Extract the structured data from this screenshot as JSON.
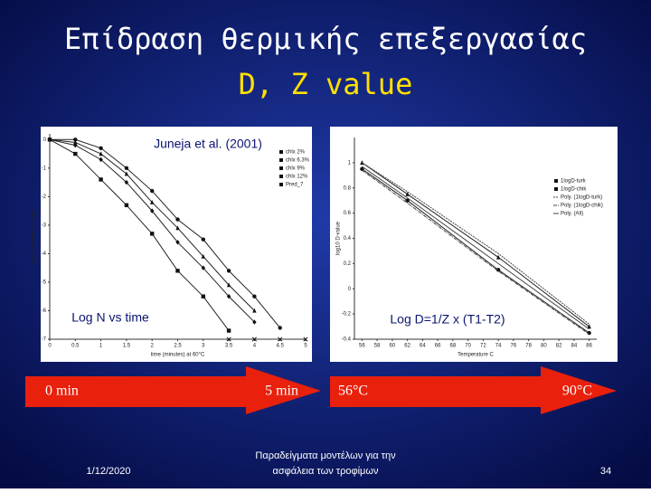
{
  "title": "Επίδραση θερμικής επεξεργασίας",
  "subtitle": "D, Z value",
  "charts": [
    {
      "xlabel": "time (minutes) at 60°C",
      "ylabel": "log10 fraction CFU/gm",
      "xlim": [
        0,
        5
      ],
      "ylim": [
        -7,
        0.2
      ],
      "xticks": [
        0,
        0.5,
        1,
        1.5,
        2,
        2.5,
        3,
        3.5,
        4,
        4.5,
        5
      ],
      "yticks": [
        0,
        -1,
        -2,
        -3,
        -4,
        -5,
        -6,
        -7
      ],
      "annotation_top": "Juneja et al. (2001)",
      "annotation_bottom": "Log N vs time",
      "series": [
        {
          "name": "chlx 2%",
          "marker": "square",
          "x": [
            0,
            0.5,
            1,
            1.5,
            2,
            2.5,
            3,
            3.5
          ],
          "values": [
            0,
            -0.5,
            -1.4,
            -2.3,
            -3.3,
            -4.6,
            -5.5,
            -6.7
          ]
        },
        {
          "name": "chlx 6.3%",
          "marker": "diamond",
          "x": [
            0,
            0.5,
            1,
            1.5,
            2,
            2.5,
            3,
            3.5,
            4
          ],
          "values": [
            0,
            -0.2,
            -0.7,
            -1.5,
            -2.5,
            -3.6,
            -4.5,
            -5.5,
            -6.4
          ]
        },
        {
          "name": "chlx 9%",
          "marker": "triangle",
          "x": [
            0,
            0.5,
            1,
            1.5,
            2,
            2.5,
            3,
            3.5,
            4
          ],
          "values": [
            0,
            -0.1,
            -0.5,
            -1.2,
            -2.2,
            -3.1,
            -4.1,
            -5.1,
            -6.0
          ]
        },
        {
          "name": "chlx 12%",
          "marker": "circle",
          "x": [
            0,
            0.5,
            1,
            1.5,
            2,
            2.5,
            3,
            3.5,
            4,
            4.5
          ],
          "values": [
            0,
            0,
            -0.3,
            -1.0,
            -1.8,
            -2.8,
            -3.5,
            -4.6,
            -5.5,
            -6.6
          ]
        },
        {
          "name": "Pred_7",
          "marker": "x",
          "x": [
            3.5,
            4,
            4.5,
            5
          ],
          "values": [
            -7,
            -7,
            -7,
            -7
          ]
        }
      ]
    },
    {
      "xlabel": "Temperature C",
      "ylabel": "log10 D-value",
      "xlim": [
        55,
        87
      ],
      "ylim": [
        -0.4,
        1.2
      ],
      "xticks": [
        56,
        58,
        60,
        62,
        64,
        66,
        68,
        70,
        72,
        74,
        76,
        78,
        80,
        82,
        84,
        86
      ],
      "yticks": [
        1,
        0.8,
        0.6,
        0.4,
        0.2,
        0,
        -0.2,
        -0.4
      ],
      "annotation_bottom": "Log D=1/Z x (T1-T2)",
      "series": [
        {
          "name": "1logD-turk",
          "marker": "triangle",
          "x": [
            56,
            62,
            74,
            86
          ],
          "values": [
            1.0,
            0.75,
            0.25,
            -0.3
          ]
        },
        {
          "name": "1logD-chik",
          "marker": "circle",
          "x": [
            56,
            62,
            74,
            86
          ],
          "values": [
            0.95,
            0.7,
            0.15,
            -0.35
          ]
        },
        {
          "name": "Poly. (1logD-turk)",
          "marker": "none",
          "x": [
            56,
            62,
            74,
            86
          ],
          "values": [
            1.0,
            0.77,
            0.28,
            -0.28
          ]
        },
        {
          "name": "Poly. (1logD-chik)",
          "marker": "none",
          "x": [
            56,
            62,
            74,
            86
          ],
          "values": [
            0.94,
            0.68,
            0.14,
            -0.36
          ]
        },
        {
          "name": "Poly. (All)",
          "marker": "none",
          "x": [
            56,
            62,
            74,
            86
          ],
          "values": [
            0.97,
            0.72,
            0.2,
            -0.32
          ]
        }
      ]
    }
  ],
  "arrows": [
    {
      "start": "0 min",
      "end": "5 min"
    },
    {
      "start": "56°C",
      "end": "90°C"
    }
  ],
  "footer": {
    "date": "1/12/2020",
    "caption": [
      "Παραδείγματα μοντέλων για την",
      "ασφάλεια των τροφίμων"
    ],
    "page": "34"
  }
}
